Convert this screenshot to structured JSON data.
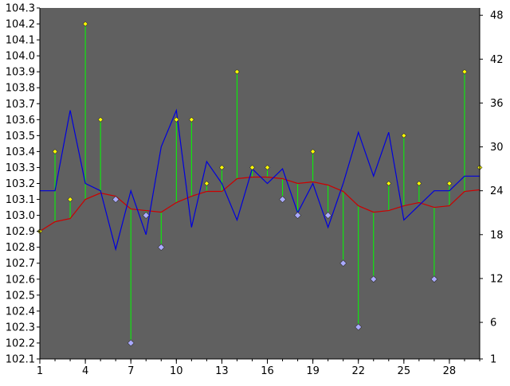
{
  "chart_data": {
    "type": "line",
    "title": "",
    "xlabel": "",
    "ylabel": "",
    "y2label": "",
    "x": [
      1,
      2,
      3,
      4,
      5,
      6,
      7,
      8,
      9,
      10,
      11,
      12,
      13,
      14,
      15,
      16,
      17,
      18,
      19,
      20,
      21,
      22,
      23,
      24,
      25,
      26,
      27,
      28,
      29,
      30
    ],
    "x_ticks": [
      "1",
      "4",
      "7",
      "10",
      "13",
      "16",
      "19",
      "22",
      "25",
      "28"
    ],
    "ylim": [
      102.1,
      104.3
    ],
    "y_ticks": [
      "102.1",
      "102.2",
      "102.3",
      "102.4",
      "102.5",
      "102.6",
      "102.7",
      "102.8",
      "102.9",
      "103.0",
      "103.1",
      "103.2",
      "103.3",
      "103.4",
      "103.5",
      "103.6",
      "103.7",
      "103.8",
      "103.9",
      "104.0",
      "104.1",
      "104.2",
      "104.3"
    ],
    "y2lim": [
      1,
      49
    ],
    "y2_ticks": [
      "1",
      "6",
      "12",
      "18",
      "24",
      "30",
      "36",
      "42",
      "48"
    ],
    "grid": false,
    "plot_background": "#606060",
    "series": [
      {
        "kind": "points-with-stems",
        "axis": "left",
        "values": [
          102.9,
          103.4,
          103.1,
          104.2,
          103.6,
          103.1,
          102.2,
          103.0,
          102.8,
          103.6,
          103.6,
          103.2,
          103.3,
          103.9,
          103.3,
          103.3,
          103.1,
          103.0,
          103.4,
          103.0,
          102.7,
          102.3,
          102.6,
          103.2,
          103.5,
          103.2,
          102.6,
          103.2,
          103.9,
          103.3
        ],
        "stem_base": [
          102.9,
          102.96,
          102.98,
          103.1,
          103.14,
          103.12,
          103.04,
          103.03,
          103.02,
          103.08,
          103.12,
          103.15,
          103.15,
          103.23,
          103.24,
          103.24,
          103.23,
          103.2,
          103.21,
          103.19,
          103.15,
          103.06,
          103.02,
          103.03,
          103.06,
          103.08,
          103.05,
          103.06,
          103.15,
          103.16
        ],
        "stem_color": "#00ff00",
        "up_marker_color": "#ffff00",
        "down_marker_color": "#aaaaff"
      },
      {
        "kind": "line",
        "axis": "left",
        "values": [
          102.9,
          102.96,
          102.98,
          103.1,
          103.14,
          103.12,
          103.04,
          103.03,
          103.02,
          103.08,
          103.12,
          103.15,
          103.15,
          103.23,
          103.24,
          103.24,
          103.23,
          103.2,
          103.21,
          103.19,
          103.15,
          103.06,
          103.02,
          103.03,
          103.06,
          103.08,
          103.05,
          103.06,
          103.15,
          103.16
        ],
        "color": "#cc0000"
      },
      {
        "kind": "line",
        "axis": "right",
        "values": [
          24,
          24,
          35,
          25,
          24,
          16,
          24,
          18,
          30,
          35,
          19,
          28,
          25,
          20,
          27,
          25,
          27,
          21,
          25,
          19,
          25,
          32,
          26,
          32,
          20,
          22,
          24,
          24,
          26,
          26
        ],
        "color": "#0000dd"
      }
    ]
  }
}
